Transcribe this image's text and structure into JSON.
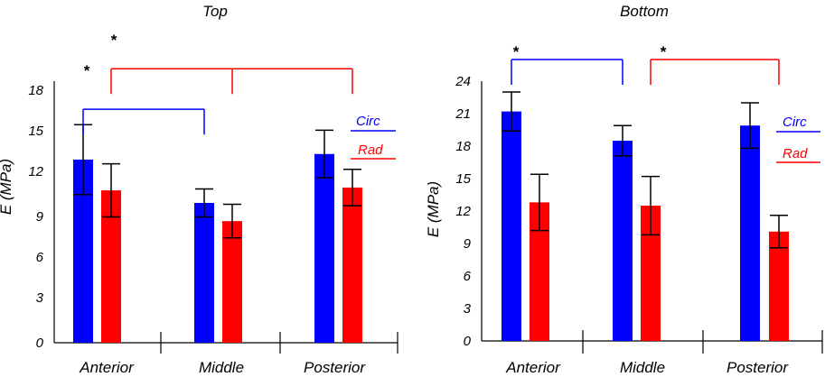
{
  "chart_data": [
    {
      "type": "bar",
      "title": "Top",
      "ylabel": "E (MPa)",
      "xlabel": "",
      "ylim": [
        0,
        18
      ],
      "yticks": [
        "0",
        "3",
        "6",
        "9",
        "12",
        "15",
        "18"
      ],
      "categories": [
        "Anterior",
        "Middle",
        "Posterior"
      ],
      "series": [
        {
          "name": "Circ",
          "color": "#0000ff",
          "values": [
            13.1,
            10.0,
            13.5
          ],
          "errors": [
            2.5,
            1.0,
            1.7
          ]
        },
        {
          "name": "Rad",
          "color": "#ff0000",
          "values": [
            10.9,
            8.7,
            11.1
          ],
          "errors": [
            1.9,
            1.2,
            1.3
          ]
        }
      ],
      "significance": [
        {
          "series": "Circ",
          "color": "#0000ff",
          "label": "*",
          "from": "Anterior",
          "to": [
            "Middle"
          ],
          "height": 16.7
        },
        {
          "series": "Rad",
          "color": "#ff0000",
          "label": "*",
          "from": "Anterior",
          "to": [
            "Middle",
            "Posterior"
          ],
          "height": 19.6
        }
      ]
    },
    {
      "type": "bar",
      "title": "Bottom",
      "ylabel": "E (MPa)",
      "xlabel": "",
      "ylim": [
        0,
        24
      ],
      "yticks": [
        "0",
        "3",
        "6",
        "9",
        "12",
        "15",
        "18",
        "21",
        "24"
      ],
      "categories": [
        "Anterior",
        "Middle",
        "Posterior"
      ],
      "series": [
        {
          "name": "Circ",
          "color": "#0000ff",
          "values": [
            21.2,
            18.5,
            19.9
          ],
          "errors": [
            1.8,
            1.4,
            2.1
          ]
        },
        {
          "name": "Rad",
          "color": "#ff0000",
          "values": [
            12.8,
            12.5,
            10.1
          ],
          "errors": [
            2.6,
            2.7,
            1.5
          ]
        }
      ],
      "significance": [
        {
          "series": "Circ",
          "color": "#0000ff",
          "label": "*",
          "from": "Anterior",
          "to": [
            "Middle"
          ],
          "height": 26.0
        },
        {
          "series": "Rad",
          "color": "#ff0000",
          "label": "*",
          "from": "Middle",
          "to": [
            "Posterior"
          ],
          "height": 26.0
        }
      ]
    }
  ]
}
